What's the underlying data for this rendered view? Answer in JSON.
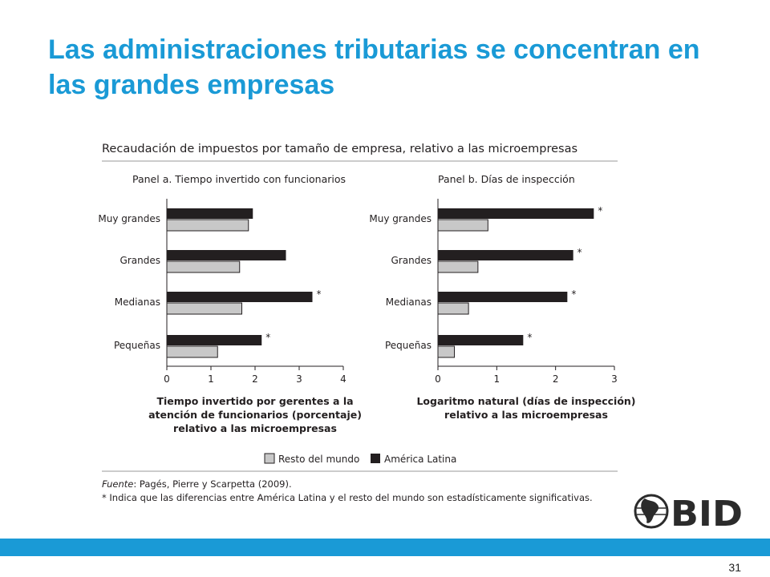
{
  "slide": {
    "title": "Las administraciones tributarias se concentran en las grandes empresas",
    "page_number": "31",
    "logo_text": "BID"
  },
  "colors": {
    "accent": "#1a9ad6",
    "series_latam": "#231f20",
    "series_world": "#c8c8c8"
  },
  "chart_data": [
    {
      "type": "bar",
      "orientation": "horizontal",
      "figure_title": "Recaudación de impuestos por tamaño de empresa, relativo a las microempresas",
      "title": "Panel a. Tiempo invertido con funcionarios",
      "categories": [
        "Muy grandes",
        "Grandes",
        "Medianas",
        "Pequeñas"
      ],
      "series": [
        {
          "name": "América Latina",
          "values": [
            1.95,
            2.7,
            3.3,
            2.15
          ]
        },
        {
          "name": "Resto del mundo",
          "values": [
            1.85,
            1.65,
            1.7,
            1.15
          ]
        }
      ],
      "significant": [
        "",
        "",
        "*",
        "*"
      ],
      "xlim": [
        0,
        4
      ],
      "xticks": [
        "0",
        "1",
        "2",
        "3",
        "4"
      ],
      "xlabel": [
        "Tiempo invertido por gerentes a la",
        "atención de funcionarios (porcentaje)",
        "relativo a las microempresas"
      ]
    },
    {
      "type": "bar",
      "orientation": "horizontal",
      "title": "Panel b. Días de inspección",
      "categories": [
        "Muy grandes",
        "Grandes",
        "Medianas",
        "Pequeñas"
      ],
      "series": [
        {
          "name": "América Latina",
          "values": [
            2.65,
            2.3,
            2.2,
            1.45
          ]
        },
        {
          "name": "Resto del mundo",
          "values": [
            0.85,
            0.68,
            0.52,
            0.28
          ]
        }
      ],
      "significant": [
        "*",
        "*",
        "*",
        "*"
      ],
      "xlim": [
        0,
        3
      ],
      "xticks": [
        "0",
        "1",
        "2",
        "3"
      ],
      "xlabel": [
        "Logaritmo natural (días de inspección)",
        "relativo a las microempresas"
      ]
    }
  ],
  "legend": {
    "items": [
      {
        "label": "Resto del mundo",
        "color": "#c8c8c8"
      },
      {
        "label": "América Latina",
        "color": "#231f20"
      }
    ],
    "placement": "bottom"
  },
  "notes": {
    "source_label": "Fuente",
    "source_text": ": Pagés, Pierre y Scarpetta (2009).",
    "significance_note": "* Indica que las diferencias entre América Latina y el resto del mundo son estadísticamente significativas."
  }
}
